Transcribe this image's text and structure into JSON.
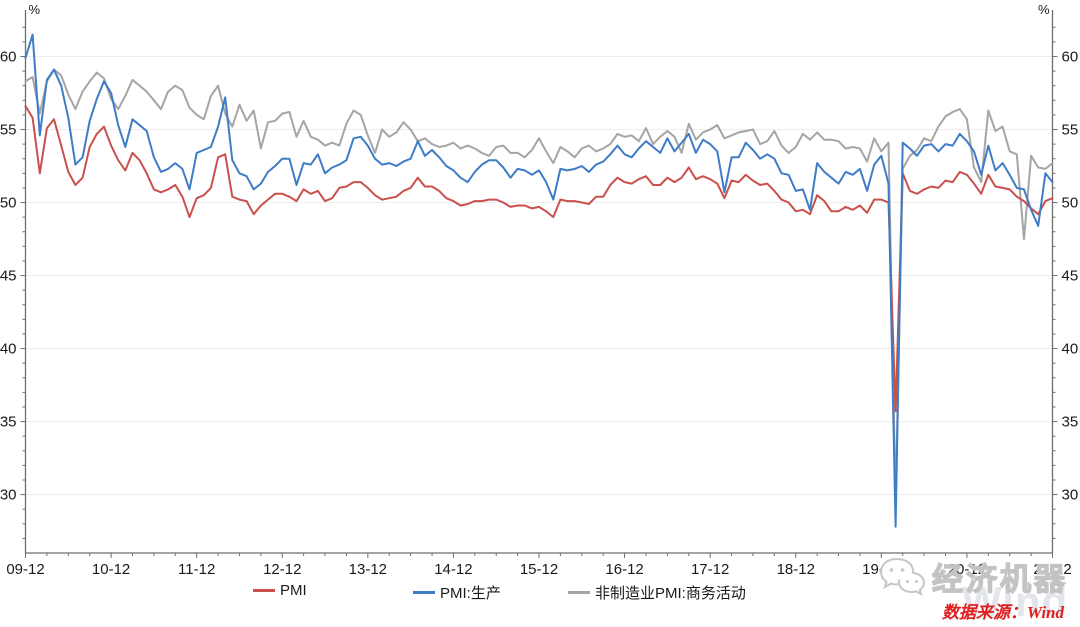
{
  "page": {
    "background": "#ffffff"
  },
  "chart_data": {
    "type": "line",
    "title": "",
    "grid": "horizontal-major",
    "legend_position": "bottom",
    "y_axis": {
      "unit": "%",
      "major_ticks": [
        30,
        35,
        40,
        45,
        50,
        55,
        60
      ],
      "minor_tick_step": 1,
      "range_min": 26,
      "range_max": 62.5,
      "shown_on": "both-sides"
    },
    "x_axis": {
      "tick_labels": [
        "09-12",
        "10-12",
        "11-12",
        "12-12",
        "13-12",
        "14-12",
        "15-12",
        "16-12",
        "17-12",
        "18-12",
        "19-12",
        "20-12",
        "21-12"
      ],
      "months_per_major_tick": 12,
      "minor_tick_every_months": 3,
      "start": "2009-12",
      "end": "2021-12"
    },
    "n_points": 145,
    "series": [
      {
        "name": "PMI",
        "color": "#C9504D",
        "values": [
          56.6,
          55.8,
          52.0,
          55.1,
          55.7,
          53.9,
          52.1,
          51.2,
          51.7,
          53.8,
          54.7,
          55.2,
          53.9,
          52.9,
          52.2,
          53.4,
          52.9,
          52.0,
          50.9,
          50.7,
          50.9,
          51.2,
          50.4,
          49.0,
          50.3,
          50.5,
          51.0,
          53.1,
          53.3,
          50.4,
          50.2,
          50.1,
          49.2,
          49.8,
          50.2,
          50.6,
          50.6,
          50.4,
          50.1,
          50.9,
          50.6,
          50.8,
          50.1,
          50.3,
          51.0,
          51.1,
          51.4,
          51.4,
          51.0,
          50.5,
          50.2,
          50.3,
          50.4,
          50.8,
          51.0,
          51.7,
          51.1,
          51.1,
          50.8,
          50.3,
          50.1,
          49.8,
          49.9,
          50.1,
          50.1,
          50.2,
          50.2,
          50.0,
          49.7,
          49.8,
          49.8,
          49.6,
          49.7,
          49.4,
          49.0,
          50.2,
          50.1,
          50.1,
          50.0,
          49.9,
          50.4,
          50.4,
          51.2,
          51.7,
          51.4,
          51.3,
          51.6,
          51.8,
          51.2,
          51.2,
          51.7,
          51.4,
          51.7,
          52.4,
          51.6,
          51.8,
          51.6,
          51.3,
          50.3,
          51.5,
          51.4,
          51.9,
          51.5,
          51.2,
          51.3,
          50.8,
          50.2,
          50.0,
          49.4,
          49.5,
          49.2,
          50.5,
          50.1,
          49.4,
          49.4,
          49.7,
          49.5,
          49.8,
          49.3,
          50.2,
          50.2,
          50.0,
          35.7,
          52.0,
          50.8,
          50.6,
          50.9,
          51.1,
          51.0,
          51.5,
          51.4,
          52.1,
          51.9,
          51.3,
          50.6,
          51.9,
          51.1,
          51.0,
          50.9,
          50.4,
          50.1,
          49.6,
          49.2,
          50.1,
          50.3
        ]
      },
      {
        "name": "PMI:生产",
        "color": "#3E7CC8",
        "values": [
          59.9,
          61.5,
          54.6,
          58.4,
          59.1,
          58.0,
          55.8,
          52.6,
          53.1,
          55.6,
          57.1,
          58.3,
          57.5,
          55.3,
          53.8,
          55.7,
          55.3,
          54.9,
          53.1,
          52.1,
          52.3,
          52.7,
          52.3,
          50.9,
          53.4,
          53.6,
          53.8,
          55.2,
          57.2,
          52.9,
          52.0,
          51.8,
          50.9,
          51.3,
          52.1,
          52.5,
          53.0,
          53.0,
          51.2,
          52.7,
          52.6,
          53.3,
          52.0,
          52.4,
          52.6,
          52.9,
          54.4,
          54.5,
          53.9,
          53.0,
          52.6,
          52.7,
          52.5,
          52.8,
          53.0,
          54.2,
          53.2,
          53.6,
          53.1,
          52.5,
          52.2,
          51.7,
          51.4,
          52.1,
          52.6,
          52.9,
          52.9,
          52.4,
          51.7,
          52.3,
          52.2,
          51.9,
          52.2,
          51.4,
          50.2,
          52.3,
          52.2,
          52.3,
          52.5,
          52.1,
          52.6,
          52.8,
          53.3,
          53.9,
          53.3,
          53.1,
          53.7,
          54.2,
          53.8,
          53.4,
          54.4,
          53.5,
          54.1,
          54.7,
          53.4,
          54.3,
          54.0,
          53.5,
          50.7,
          53.1,
          53.1,
          54.1,
          53.6,
          53.0,
          53.3,
          53.0,
          52.0,
          51.9,
          50.8,
          50.9,
          49.5,
          52.7,
          52.1,
          51.7,
          51.3,
          52.1,
          51.9,
          52.3,
          50.8,
          52.6,
          53.2,
          51.3,
          27.8,
          54.1,
          53.7,
          53.2,
          53.9,
          54.0,
          53.5,
          54.0,
          53.9,
          54.7,
          54.2,
          53.5,
          51.9,
          53.9,
          52.2,
          52.7,
          51.9,
          51.0,
          50.9,
          49.5,
          48.4,
          52.0,
          51.4
        ]
      },
      {
        "name": "非制造业PMI:商务活动",
        "color": "#A5A5A5",
        "values": [
          58.3,
          58.6,
          56.1,
          58.3,
          59.1,
          58.7,
          57.4,
          56.4,
          57.6,
          58.3,
          58.9,
          58.5,
          57.1,
          56.4,
          57.3,
          58.4,
          58.0,
          57.6,
          57.0,
          56.4,
          57.6,
          58.0,
          57.7,
          56.5,
          56.0,
          55.7,
          57.3,
          58.0,
          56.1,
          55.2,
          56.7,
          55.6,
          56.3,
          53.7,
          55.5,
          55.6,
          56.1,
          56.2,
          54.5,
          55.6,
          54.5,
          54.3,
          53.9,
          54.1,
          53.9,
          55.4,
          56.3,
          56.0,
          54.6,
          53.4,
          55.0,
          54.5,
          54.8,
          55.5,
          55.0,
          54.2,
          54.4,
          54.0,
          53.8,
          53.9,
          54.1,
          53.7,
          53.9,
          53.7,
          53.4,
          53.2,
          53.8,
          53.9,
          53.4,
          53.4,
          53.1,
          53.6,
          54.4,
          53.5,
          52.7,
          53.8,
          53.5,
          53.1,
          53.7,
          53.9,
          53.5,
          53.7,
          54.0,
          54.7,
          54.5,
          54.6,
          54.2,
          55.1,
          54.0,
          54.5,
          54.9,
          54.5,
          53.4,
          55.4,
          54.3,
          54.8,
          55.0,
          55.3,
          54.4,
          54.6,
          54.8,
          54.9,
          55.0,
          54.0,
          54.2,
          54.9,
          53.9,
          53.4,
          53.8,
          54.7,
          54.3,
          54.8,
          54.3,
          54.3,
          54.2,
          53.7,
          53.8,
          53.7,
          52.8,
          54.4,
          53.5,
          54.1,
          29.6,
          52.3,
          53.2,
          53.6,
          54.4,
          54.2,
          55.2,
          55.9,
          56.2,
          56.4,
          55.7,
          52.4,
          51.4,
          56.3,
          54.9,
          55.2,
          53.5,
          53.3,
          47.5,
          53.2,
          52.4,
          52.3,
          52.7
        ]
      }
    ]
  },
  "footer": {
    "source_text": "数据来源：Wind"
  },
  "watermark": {
    "brand_text": "经济机器",
    "wind_text": "Wind"
  }
}
